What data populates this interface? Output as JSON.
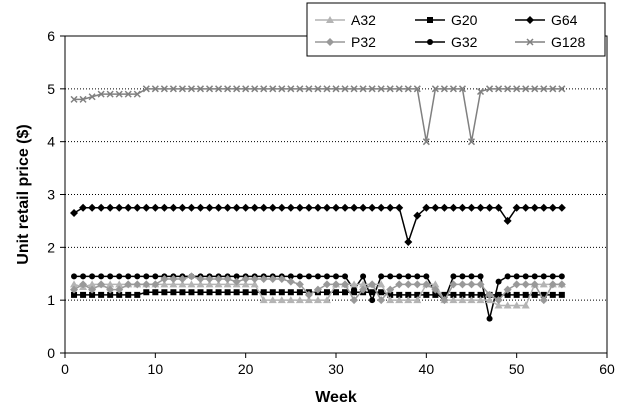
{
  "chart_data": {
    "type": "line",
    "xlabel": "Week",
    "ylabel": "Unit retail price ($)",
    "xlim": [
      0,
      60
    ],
    "ylim": [
      0,
      6
    ],
    "xticks": [
      "0",
      "10",
      "20",
      "30",
      "40",
      "50",
      "60"
    ],
    "yticks": [
      "0",
      "1",
      "2",
      "3",
      "4",
      "5",
      "6"
    ],
    "grid": "horizontal dotted",
    "legend_position": "top-right",
    "series": [
      {
        "name": "G128",
        "color": "#808080",
        "marker": "x",
        "x": [
          1,
          2,
          3,
          4,
          5,
          6,
          7,
          8,
          9,
          10,
          11,
          12,
          13,
          14,
          15,
          16,
          17,
          18,
          19,
          20,
          21,
          22,
          23,
          24,
          25,
          26,
          27,
          28,
          29,
          30,
          31,
          32,
          33,
          34,
          35,
          36,
          37,
          38,
          39,
          40,
          41,
          42,
          43,
          44,
          45,
          46,
          47,
          48,
          49,
          50,
          51,
          52,
          53,
          54,
          55
        ],
        "y": [
          4.8,
          4.8,
          4.85,
          4.9,
          4.9,
          4.9,
          4.9,
          4.9,
          5.0,
          5.0,
          5.0,
          5.0,
          5.0,
          5.0,
          5.0,
          5.0,
          5.0,
          5.0,
          5.0,
          5.0,
          5.0,
          5.0,
          5.0,
          5.0,
          5.0,
          5.0,
          5.0,
          5.0,
          5.0,
          5.0,
          5.0,
          5.0,
          5.0,
          5.0,
          5.0,
          5.0,
          5.0,
          5.0,
          5.0,
          4.0,
          5.0,
          5.0,
          5.0,
          5.0,
          4.0,
          4.95,
          5.0,
          5.0,
          5.0,
          5.0,
          5.0,
          5.0,
          5.0,
          5.0,
          5.0
        ]
      },
      {
        "name": "G64",
        "color": "#000000",
        "marker": "diamond",
        "x": [
          1,
          2,
          3,
          4,
          5,
          6,
          7,
          8,
          9,
          10,
          11,
          12,
          13,
          14,
          15,
          16,
          17,
          18,
          19,
          20,
          21,
          22,
          23,
          24,
          25,
          26,
          27,
          28,
          29,
          30,
          31,
          32,
          33,
          34,
          35,
          36,
          37,
          38,
          39,
          40,
          41,
          42,
          43,
          44,
          45,
          46,
          47,
          48,
          49,
          50,
          51,
          52,
          53,
          54,
          55
        ],
        "y": [
          2.65,
          2.75,
          2.75,
          2.75,
          2.75,
          2.75,
          2.75,
          2.75,
          2.75,
          2.75,
          2.75,
          2.75,
          2.75,
          2.75,
          2.75,
          2.75,
          2.75,
          2.75,
          2.75,
          2.75,
          2.75,
          2.75,
          2.75,
          2.75,
          2.75,
          2.75,
          2.75,
          2.75,
          2.75,
          2.75,
          2.75,
          2.75,
          2.75,
          2.75,
          2.75,
          2.75,
          2.75,
          2.1,
          2.6,
          2.75,
          2.75,
          2.75,
          2.75,
          2.75,
          2.75,
          2.75,
          2.75,
          2.75,
          2.5,
          2.75,
          2.75,
          2.75,
          2.75,
          2.75,
          2.75
        ]
      },
      {
        "name": "G32",
        "color": "#000000",
        "marker": "circle",
        "x": [
          1,
          2,
          3,
          4,
          5,
          6,
          7,
          8,
          9,
          10,
          11,
          12,
          13,
          14,
          15,
          16,
          17,
          18,
          19,
          20,
          21,
          22,
          23,
          24,
          25,
          26,
          27,
          28,
          29,
          30,
          31,
          32,
          33,
          34,
          35,
          36,
          37,
          38,
          39,
          40,
          41,
          42,
          43,
          44,
          45,
          46,
          47,
          48,
          49,
          50,
          51,
          52,
          53,
          54,
          55
        ],
        "y": [
          1.45,
          1.45,
          1.45,
          1.45,
          1.45,
          1.45,
          1.45,
          1.45,
          1.45,
          1.45,
          1.45,
          1.45,
          1.45,
          1.45,
          1.45,
          1.45,
          1.45,
          1.45,
          1.45,
          1.45,
          1.45,
          1.45,
          1.45,
          1.45,
          1.45,
          1.45,
          1.45,
          1.45,
          1.45,
          1.45,
          1.45,
          1.2,
          1.45,
          1.0,
          1.45,
          1.45,
          1.45,
          1.45,
          1.45,
          1.45,
          1.15,
          1.0,
          1.45,
          1.45,
          1.45,
          1.45,
          0.65,
          1.35,
          1.45,
          1.45,
          1.45,
          1.45,
          1.45,
          1.45,
          1.45
        ]
      },
      {
        "name": "G20",
        "color": "#000000",
        "marker": "square",
        "x": [
          1,
          2,
          3,
          4,
          5,
          6,
          7,
          8,
          9,
          10,
          11,
          12,
          13,
          14,
          15,
          16,
          17,
          18,
          19,
          20,
          21,
          22,
          23,
          24,
          25,
          26,
          27,
          28,
          29,
          30,
          31,
          32,
          33,
          34,
          35,
          36,
          37,
          38,
          39,
          40,
          41,
          42,
          43,
          44,
          45,
          46,
          47,
          48,
          49,
          50,
          51,
          52,
          53,
          54,
          55
        ],
        "y": [
          1.1,
          1.1,
          1.1,
          1.1,
          1.1,
          1.1,
          1.1,
          1.1,
          1.15,
          1.15,
          1.15,
          1.15,
          1.15,
          1.15,
          1.15,
          1.15,
          1.15,
          1.15,
          1.15,
          1.15,
          1.15,
          1.15,
          1.15,
          1.15,
          1.15,
          1.15,
          1.15,
          1.15,
          1.15,
          1.15,
          1.15,
          1.15,
          1.15,
          1.15,
          1.15,
          1.1,
          1.1,
          1.1,
          1.1,
          1.1,
          1.1,
          1.1,
          1.1,
          1.1,
          1.1,
          1.1,
          1.1,
          1.1,
          1.1,
          1.1,
          1.1,
          1.1,
          1.1,
          1.1,
          1.1
        ]
      },
      {
        "name": "A32",
        "color": "#b4b4b4",
        "marker": "triangle",
        "x": [
          1,
          2,
          3,
          4,
          5,
          6,
          7,
          8,
          9,
          10,
          11,
          12,
          13,
          14,
          15,
          16,
          17,
          18,
          19,
          20,
          21,
          22,
          23,
          24,
          25,
          26,
          27,
          28,
          29,
          30,
          31,
          32,
          33,
          34,
          35,
          36,
          37,
          38,
          39,
          40,
          41,
          42,
          43,
          44,
          45,
          46,
          47,
          48,
          49,
          50,
          51,
          52,
          53,
          54,
          55
        ],
        "y": [
          1.3,
          1.25,
          1.3,
          1.3,
          1.3,
          1.3,
          1.3,
          1.3,
          1.3,
          1.3,
          1.3,
          1.3,
          1.3,
          1.3,
          1.3,
          1.3,
          1.3,
          1.3,
          1.3,
          1.3,
          1.3,
          1.0,
          1.0,
          1.0,
          1.0,
          1.0,
          1.0,
          1.0,
          1.0,
          1.3,
          1.3,
          1.3,
          1.3,
          1.3,
          1.3,
          1.0,
          1.0,
          1.0,
          1.0,
          1.3,
          1.3,
          1.0,
          1.0,
          1.0,
          1.0,
          1.0,
          1.0,
          0.9,
          0.9,
          0.9,
          0.9,
          1.3,
          1.3,
          1.3,
          1.3
        ]
      },
      {
        "name": "P32",
        "color": "#999999",
        "marker": "diamond",
        "x": [
          1,
          2,
          3,
          4,
          5,
          6,
          7,
          8,
          9,
          10,
          11,
          12,
          13,
          14,
          15,
          16,
          17,
          18,
          19,
          20,
          21,
          22,
          23,
          24,
          25,
          26,
          27,
          28,
          29,
          30,
          31,
          32,
          33,
          34,
          35,
          36,
          37,
          38,
          39,
          40,
          41,
          42,
          43,
          44,
          45,
          46,
          47,
          48,
          49,
          50,
          51,
          52,
          53,
          54,
          55
        ],
        "y": [
          1.2,
          1.3,
          1.2,
          1.3,
          1.2,
          1.2,
          1.3,
          1.3,
          1.3,
          1.3,
          1.4,
          1.4,
          1.4,
          1.45,
          1.4,
          1.4,
          1.4,
          1.4,
          1.35,
          1.4,
          1.4,
          1.4,
          1.4,
          1.4,
          1.35,
          1.3,
          1.1,
          1.2,
          1.3,
          1.3,
          1.3,
          1.0,
          1.2,
          1.3,
          1.0,
          1.2,
          1.3,
          1.3,
          1.3,
          1.3,
          1.2,
          1.0,
          1.3,
          1.3,
          1.3,
          1.3,
          1.1,
          1.0,
          1.2,
          1.3,
          1.3,
          1.3,
          1.0,
          1.3,
          1.3
        ]
      }
    ]
  }
}
